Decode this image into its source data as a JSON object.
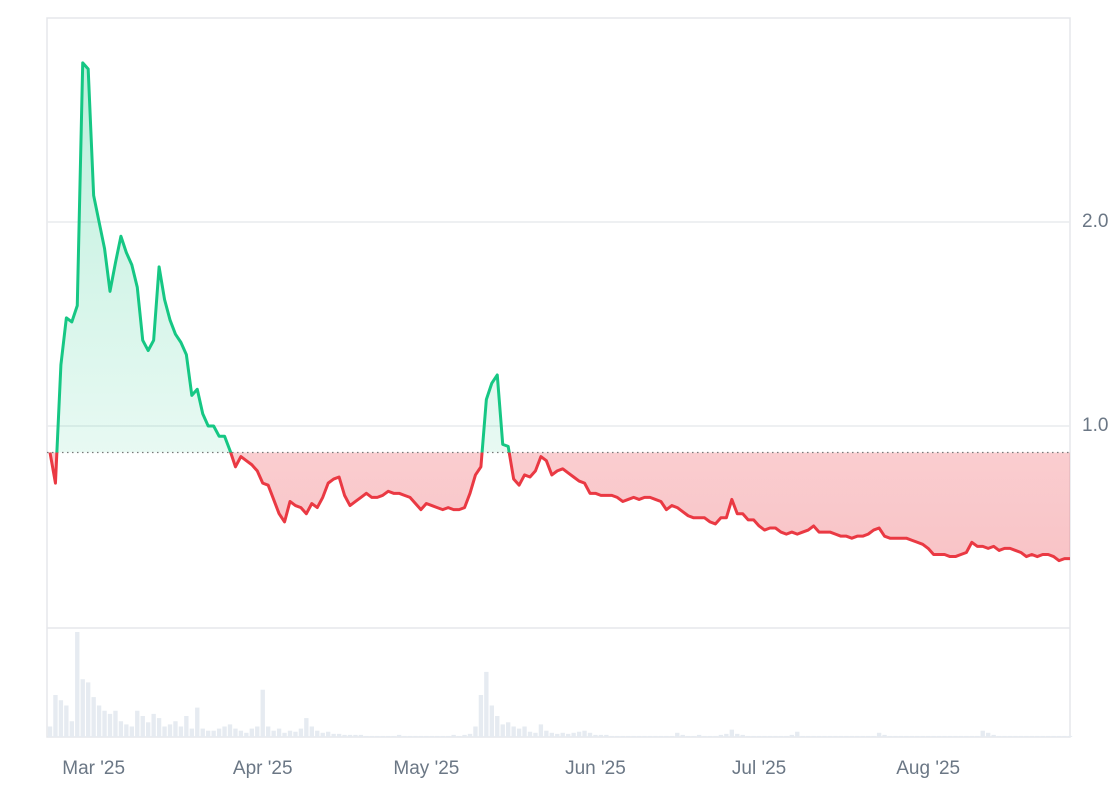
{
  "chart_data": {
    "type": "line",
    "categories": [
      null,
      null,
      null,
      null,
      null,
      null,
      null,
      null,
      "Mar '25",
      null,
      null,
      null,
      null,
      null,
      null,
      null,
      null,
      null,
      null,
      null,
      null,
      null,
      null,
      null,
      null,
      null,
      null,
      null,
      null,
      null,
      null,
      null,
      null,
      null,
      null,
      null,
      null,
      null,
      null,
      "Apr '25",
      null,
      null,
      null,
      null,
      null,
      null,
      null,
      null,
      null,
      null,
      null,
      null,
      null,
      null,
      null,
      null,
      null,
      null,
      null,
      null,
      null,
      null,
      null,
      null,
      null,
      null,
      null,
      null,
      null,
      "May '25",
      null,
      null,
      null,
      null,
      null,
      null,
      null,
      null,
      null,
      null,
      null,
      null,
      null,
      null,
      null,
      null,
      null,
      null,
      null,
      null,
      null,
      null,
      null,
      null,
      null,
      null,
      null,
      null,
      null,
      null,
      "Jun '25",
      null,
      null,
      null,
      null,
      null,
      null,
      null,
      null,
      null,
      null,
      null,
      null,
      null,
      null,
      null,
      null,
      null,
      null,
      null,
      null,
      null,
      null,
      null,
      null,
      null,
      null,
      null,
      null,
      null,
      "Jul '25",
      null,
      null,
      null,
      null,
      null,
      null,
      null,
      null,
      null,
      null,
      null,
      null,
      null,
      null,
      null,
      null,
      null,
      null,
      null,
      null,
      null,
      null,
      null,
      null,
      null,
      null,
      null,
      null,
      null,
      null,
      "Aug '25",
      null,
      null,
      null,
      null,
      null,
      null,
      null,
      null,
      null,
      null,
      null,
      null,
      null,
      null,
      null,
      null,
      null,
      null,
      null,
      null,
      null,
      null,
      null,
      null,
      null,
      null
    ],
    "values": [
      0.87,
      0.72,
      1.3,
      1.53,
      1.51,
      1.59,
      2.78,
      2.75,
      2.13,
      2.0,
      1.87,
      1.66,
      1.8,
      1.93,
      1.85,
      1.79,
      1.68,
      1.42,
      1.37,
      1.42,
      1.78,
      1.62,
      1.52,
      1.45,
      1.41,
      1.35,
      1.15,
      1.18,
      1.06,
      1.0,
      1.0,
      0.95,
      0.95,
      0.88,
      0.8,
      0.85,
      0.83,
      0.81,
      0.78,
      0.72,
      0.71,
      0.64,
      0.57,
      0.53,
      0.63,
      0.61,
      0.6,
      0.57,
      0.62,
      0.6,
      0.65,
      0.72,
      0.74,
      0.75,
      0.66,
      0.61,
      0.63,
      0.65,
      0.67,
      0.65,
      0.65,
      0.66,
      0.68,
      0.67,
      0.67,
      0.66,
      0.65,
      0.62,
      0.59,
      0.62,
      0.61,
      0.6,
      0.59,
      0.6,
      0.59,
      0.59,
      0.6,
      0.67,
      0.76,
      0.8,
      1.13,
      1.21,
      1.25,
      0.91,
      0.9,
      0.74,
      0.71,
      0.76,
      0.75,
      0.78,
      0.85,
      0.83,
      0.76,
      0.78,
      0.79,
      0.77,
      0.75,
      0.73,
      0.72,
      0.67,
      0.67,
      0.66,
      0.66,
      0.66,
      0.65,
      0.63,
      0.64,
      0.65,
      0.64,
      0.65,
      0.65,
      0.64,
      0.63,
      0.59,
      0.61,
      0.6,
      0.58,
      0.56,
      0.55,
      0.55,
      0.55,
      0.53,
      0.52,
      0.55,
      0.55,
      0.64,
      0.57,
      0.57,
      0.54,
      0.54,
      0.51,
      0.49,
      0.5,
      0.5,
      0.48,
      0.47,
      0.48,
      0.47,
      0.48,
      0.49,
      0.51,
      0.48,
      0.48,
      0.48,
      0.47,
      0.46,
      0.46,
      0.45,
      0.46,
      0.46,
      0.47,
      0.49,
      0.5,
      0.46,
      0.45,
      0.45,
      0.45,
      0.45,
      0.44,
      0.43,
      0.42,
      0.4,
      0.37,
      0.37,
      0.37,
      0.36,
      0.36,
      0.37,
      0.38,
      0.43,
      0.41,
      0.41,
      0.4,
      0.41,
      0.39,
      0.4,
      0.4,
      0.39,
      0.38,
      0.36,
      0.37,
      0.36,
      0.37,
      0.37,
      0.36,
      0.34,
      0.35,
      0.35
    ],
    "volume": [
      10,
      40,
      35,
      30,
      15,
      100,
      55,
      52,
      38,
      30,
      25,
      22,
      25,
      15,
      12,
      10,
      25,
      20,
      14,
      22,
      18,
      10,
      12,
      15,
      10,
      20,
      8,
      28,
      8,
      6,
      6,
      8,
      10,
      12,
      8,
      6,
      4,
      8,
      10,
      45,
      10,
      6,
      8,
      4,
      6,
      5,
      8,
      18,
      10,
      6,
      4,
      5,
      3,
      3,
      2,
      2,
      2,
      2,
      1,
      1,
      1,
      1,
      1,
      1,
      2,
      1,
      1,
      1,
      1,
      1,
      1,
      1,
      1,
      1,
      2,
      1,
      2,
      3,
      10,
      40,
      62,
      30,
      20,
      12,
      14,
      10,
      8,
      10,
      5,
      4,
      12,
      6,
      4,
      3,
      4,
      3,
      4,
      5,
      6,
      4,
      2,
      2,
      2,
      1,
      1,
      1,
      1,
      1,
      1,
      1,
      1,
      1,
      1,
      1,
      1,
      4,
      2,
      1,
      1,
      2,
      1,
      1,
      1,
      2,
      3,
      7,
      3,
      2,
      1,
      1,
      1,
      1,
      1,
      1,
      1,
      1,
      2,
      5,
      1,
      1,
      1,
      1,
      1,
      1,
      1,
      1,
      1,
      1,
      1,
      1,
      1,
      1,
      4,
      2,
      1,
      1,
      1,
      1,
      1,
      1,
      1,
      1,
      1,
      1,
      1,
      1,
      1,
      1,
      1,
      1,
      1,
      6,
      4,
      2,
      1,
      1,
      1,
      1,
      1,
      1,
      1,
      1,
      1,
      1,
      1,
      1,
      1,
      1
    ],
    "baseline": 0.87,
    "up_color": "#16c784",
    "down_color": "#ea3943",
    "volume_color": "#e6ebf1",
    "ylim": [
      0,
      3
    ],
    "yticks": [
      {
        "value": 1,
        "label": "1.0"
      },
      {
        "value": 2,
        "label": "2.0"
      }
    ],
    "grid": true
  }
}
